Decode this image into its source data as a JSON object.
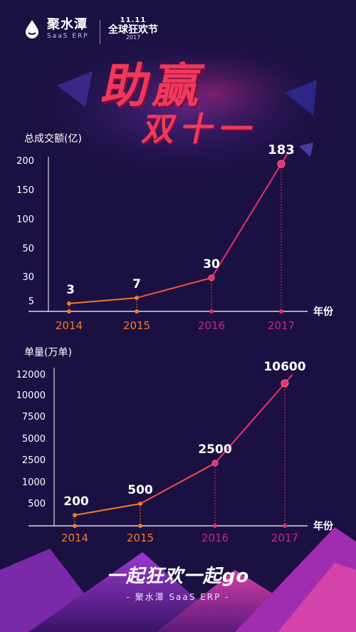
{
  "brand": {
    "name": "聚水潭",
    "sub": "SaaS ERP"
  },
  "festival": {
    "badge": "11.11",
    "name": "全球狂欢节",
    "year": "2017"
  },
  "headline": {
    "main": "助赢",
    "sub": "双十一"
  },
  "colors": {
    "background": "#1b1042",
    "orange": "#f07a2a",
    "pink": "#e8306a",
    "magenta": "#c12a86",
    "axis": "#ffffff"
  },
  "chart_data": [
    {
      "type": "line",
      "ylabel": "总成交额(亿)",
      "xlabel": "年份",
      "x": [
        "2014",
        "2015",
        "2016",
        "2017"
      ],
      "values": [
        3,
        7,
        30,
        183
      ],
      "data_labels": [
        "3",
        "7",
        "30",
        "183"
      ],
      "yticks": [
        "5",
        "30",
        "50",
        "100",
        "150",
        "200"
      ],
      "ylim": [
        0,
        200
      ],
      "grid": false
    },
    {
      "type": "line",
      "ylabel": "单量(万单)",
      "xlabel": "年份",
      "x": [
        "2014",
        "2015",
        "2016",
        "2017"
      ],
      "values": [
        200,
        500,
        2500,
        10600
      ],
      "data_labels": [
        "200",
        "500",
        "2500",
        "10600"
      ],
      "yticks": [
        "500",
        "1000",
        "2500",
        "5000",
        "7500",
        "10000",
        "12000"
      ],
      "ylim": [
        0,
        12000
      ],
      "grid": false
    }
  ],
  "footer": {
    "slogan": "一起狂欢一起go",
    "tagline": "- 聚水潭 SaaS ERP -"
  }
}
